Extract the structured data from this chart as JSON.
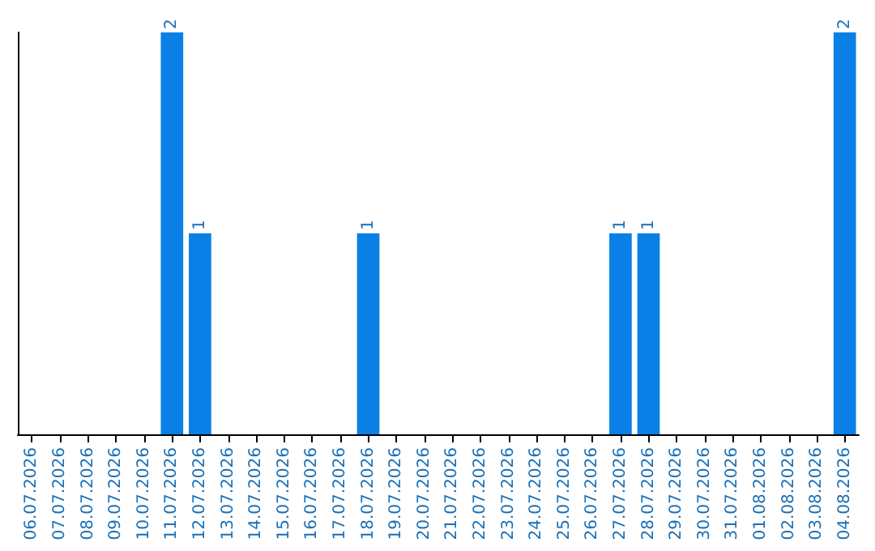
{
  "chart_data": {
    "type": "bar",
    "categories": [
      "06.07.2026",
      "07.07.2026",
      "08.07.2026",
      "09.07.2026",
      "10.07.2026",
      "11.07.2026",
      "12.07.2026",
      "13.07.2026",
      "14.07.2026",
      "15.07.2026",
      "16.07.2026",
      "17.07.2026",
      "18.07.2026",
      "19.07.2026",
      "20.07.2026",
      "21.07.2026",
      "22.07.2026",
      "23.07.2026",
      "24.07.2026",
      "25.07.2026",
      "26.07.2026",
      "27.07.2026",
      "28.07.2026",
      "29.07.2026",
      "30.07.2026",
      "31.07.2026",
      "01.08.2026",
      "02.08.2026",
      "03.08.2026",
      "04.08.2026"
    ],
    "values": [
      0,
      0,
      0,
      0,
      0,
      2,
      1,
      0,
      0,
      0,
      0,
      0,
      1,
      0,
      0,
      0,
      0,
      0,
      0,
      0,
      0,
      1,
      1,
      0,
      0,
      0,
      0,
      0,
      0,
      2
    ],
    "value_labels": [
      null,
      null,
      null,
      null,
      null,
      "2",
      "1",
      null,
      null,
      null,
      null,
      null,
      "1",
      null,
      null,
      null,
      null,
      null,
      null,
      null,
      null,
      "1",
      "1",
      null,
      null,
      null,
      null,
      null,
      null,
      "2"
    ],
    "color": "#0a7fe6",
    "grid": false,
    "tick_labels": "x"
  }
}
